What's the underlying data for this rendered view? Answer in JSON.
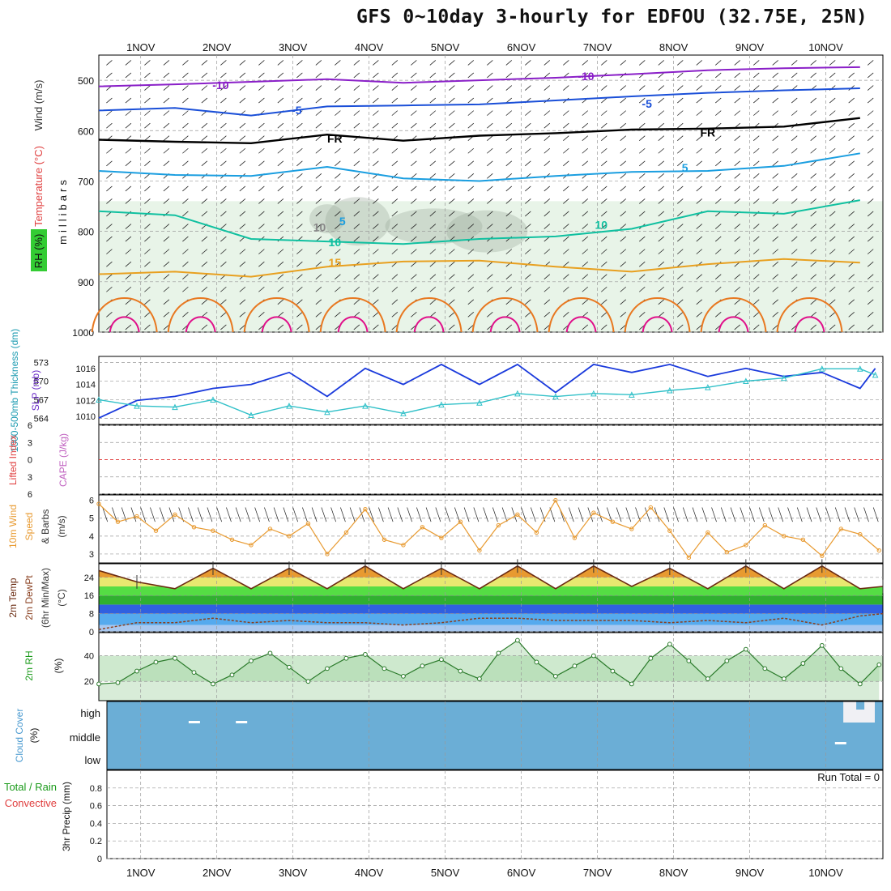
{
  "header": {
    "title": "GFS 0~10day 3-hourly for EDFOU (32.75E, 25N)"
  },
  "dates": [
    "1NOV",
    "2NOV",
    "3NOV",
    "4NOV",
    "5NOV",
    "6NOV",
    "7NOV",
    "8NOV",
    "9NOV",
    "10NOV"
  ],
  "colors": {
    "rh_fill": "#e8f4e8",
    "rh_dark": "#9aa89a",
    "wind_barb": "#222222",
    "t_minus10": "#8a1fc8",
    "t_minus5": "#1a4fd8",
    "t_freezing": "#000000",
    "t_plus5": "#1a9ee0",
    "t_plus10": "#10c0a0",
    "t_plus15": "#e8a020",
    "t_plus20": "#e87820",
    "t_plus25": "#e0108a",
    "slp_line": "#1a3adc",
    "thickness_line": "#30c0c8",
    "lifted_index_zero": "#e04040",
    "wind10m_line": "#e89a30",
    "rh2m": "#66cc66",
    "cloud": "#6baed6"
  },
  "chart_data": [
    {
      "type": "line",
      "panel": "upper-air",
      "y_axis_labels": [
        "Wind",
        "(m/s)",
        "Temperature",
        "(°C)",
        "RH",
        "(%)",
        "millibars"
      ],
      "y_ticks": [
        500,
        600,
        700,
        800,
        900,
        1000
      ],
      "ylim": [
        450,
        1000
      ],
      "contour_labels": [
        "-10",
        "-10",
        "-5",
        "-5",
        "FR",
        "FR",
        "5",
        "5",
        "10",
        "10",
        "10",
        "15"
      ],
      "series": [
        {
          "level_label": "-10",
          "x_days": [
            0,
            1,
            2,
            3,
            4,
            5,
            6,
            7,
            8,
            9,
            10
          ],
          "pressure": [
            512,
            508,
            503,
            498,
            505,
            500,
            495,
            488,
            480,
            476,
            474
          ]
        },
        {
          "level_label": "-5",
          "x_days": [
            0,
            1,
            2,
            3,
            4,
            5,
            6,
            7,
            8,
            9,
            10
          ],
          "pressure": [
            560,
            555,
            570,
            552,
            550,
            548,
            540,
            532,
            525,
            520,
            516
          ]
        },
        {
          "level_label": "FR",
          "x_days": [
            0,
            1,
            2,
            3,
            4,
            5,
            6,
            7,
            8,
            9,
            10
          ],
          "pressure": [
            618,
            622,
            625,
            608,
            620,
            610,
            605,
            598,
            596,
            592,
            575
          ]
        },
        {
          "level_label": "5",
          "x_days": [
            0,
            1,
            2,
            3,
            4,
            5,
            6,
            7,
            8,
            9,
            10
          ],
          "pressure": [
            680,
            688,
            690,
            672,
            695,
            700,
            690,
            682,
            680,
            670,
            645
          ]
        },
        {
          "level_label": "10",
          "x_days": [
            0,
            1,
            2,
            3,
            4,
            5,
            6,
            7,
            8,
            9,
            10
          ],
          "pressure": [
            760,
            768,
            815,
            820,
            825,
            815,
            810,
            795,
            760,
            765,
            738
          ]
        },
        {
          "level_label": "15",
          "x_days": [
            0,
            1,
            2,
            3,
            4,
            5,
            6,
            7,
            8,
            9,
            10
          ],
          "pressure": [
            885,
            880,
            890,
            870,
            860,
            858,
            870,
            880,
            865,
            855,
            862
          ]
        }
      ]
    },
    {
      "type": "line",
      "panel": "slp-thickness",
      "y_label_left": [
        "1000-500mb",
        "Thickness (dm)"
      ],
      "y_label_right": [
        "SLP (mb)"
      ],
      "left_ticks": [
        564,
        567,
        570,
        573
      ],
      "right_ticks": [
        1010,
        1012,
        1014,
        1016
      ],
      "series": [
        {
          "name": "SLP",
          "x_days": [
            0,
            0.5,
            1,
            1.5,
            2,
            2.5,
            3,
            3.5,
            4,
            4.5,
            5,
            5.5,
            6,
            6.5,
            7,
            7.5,
            8,
            8.5,
            9,
            9.5,
            10,
            10.2
          ],
          "values": [
            1009.8,
            1012,
            1012.5,
            1013.5,
            1014,
            1015.5,
            1012.5,
            1016,
            1014,
            1016.5,
            1014,
            1016.5,
            1013,
            1016.5,
            1015.5,
            1016.5,
            1015,
            1016,
            1015,
            1015.5,
            1013.5,
            1016
          ]
        },
        {
          "name": "Thickness",
          "x_days": [
            0,
            0.5,
            1,
            1.5,
            2,
            2.5,
            3,
            3.5,
            4,
            4.5,
            5,
            5.5,
            6,
            6.5,
            7,
            7.5,
            8,
            8.5,
            9,
            9.5,
            10,
            10.2
          ],
          "values": [
            567,
            566,
            565.8,
            567,
            564.5,
            566,
            565,
            566,
            564.8,
            566.2,
            566.5,
            568,
            567.5,
            568,
            567.8,
            568.5,
            569,
            570,
            570.5,
            572,
            572,
            571
          ]
        }
      ]
    },
    {
      "type": "line",
      "panel": "lifted-index-cape",
      "y_label_left": [
        "Lifted Index"
      ],
      "y_label_right": [
        "CAPE (J/kg)"
      ],
      "y_ticks": [
        -6,
        -3,
        0,
        3,
        6
      ],
      "values": []
    },
    {
      "type": "line",
      "panel": "wind-10m",
      "y_label": [
        "10m Wind",
        "Speed",
        "& Barbs",
        "(m/s)"
      ],
      "y_ticks": [
        3,
        4,
        5,
        6
      ],
      "ylim": [
        2.5,
        6.3
      ],
      "x_days": [
        0,
        0.25,
        0.5,
        0.75,
        1,
        1.25,
        1.5,
        1.75,
        2,
        2.25,
        2.5,
        2.75,
        3,
        3.25,
        3.5,
        3.75,
        4,
        4.25,
        4.5,
        4.75,
        5,
        5.25,
        5.5,
        5.75,
        6,
        6.25,
        6.5,
        6.75,
        7,
        7.25,
        7.5,
        7.75,
        8,
        8.25,
        8.5,
        8.75,
        9,
        9.25,
        9.5,
        9.75,
        10,
        10.25
      ],
      "values": [
        5.8,
        4.8,
        5.1,
        4.3,
        5.2,
        4.5,
        4.3,
        3.8,
        3.5,
        4.4,
        4.0,
        4.7,
        3.0,
        4.2,
        5.5,
        3.8,
        3.5,
        4.5,
        3.9,
        4.8,
        3.2,
        4.6,
        5.2,
        4.2,
        6.0,
        3.9,
        5.3,
        4.8,
        4.4,
        5.6,
        4.3,
        2.8,
        4.2,
        3.1,
        3.5,
        4.6,
        4.0,
        3.8,
        2.9,
        4.4,
        4.1,
        3.2
      ]
    },
    {
      "type": "area",
      "panel": "temp-2m",
      "y_label": [
        "2m Temp",
        "2m DewPt",
        "(6hr Min/Max)",
        "(°C)"
      ],
      "y_ticks": [
        0,
        8,
        16,
        24
      ],
      "ylim": [
        0,
        30
      ],
      "series": [
        {
          "name": "Temperature",
          "x_days": [
            0,
            0.5,
            1,
            1.5,
            2,
            2.5,
            3,
            3.5,
            4,
            4.5,
            5,
            5.5,
            6,
            6.5,
            7,
            7.5,
            8,
            8.5,
            9,
            9.5,
            10,
            10.3
          ],
          "values": [
            27,
            22,
            19,
            28,
            19,
            28,
            19,
            29,
            19,
            28,
            19,
            29,
            19,
            29,
            20,
            28,
            19,
            29,
            19,
            29,
            19,
            20
          ]
        },
        {
          "name": "Dew Point",
          "x_days": [
            0,
            0.5,
            1,
            1.5,
            2,
            2.5,
            3,
            3.5,
            4,
            4.5,
            5,
            5.5,
            6,
            6.5,
            7,
            7.5,
            8,
            8.5,
            9,
            9.5,
            10,
            10.3
          ],
          "values": [
            1,
            4,
            4,
            6,
            4,
            5,
            4,
            4,
            3,
            4,
            6,
            6,
            5,
            5,
            5,
            4,
            5,
            4,
            6,
            3,
            7,
            8
          ]
        }
      ]
    },
    {
      "type": "area",
      "panel": "rh-2m",
      "y_label": [
        "2m RH",
        "(%)"
      ],
      "y_ticks": [
        20,
        40
      ],
      "ylim": [
        5,
        58
      ],
      "x_days": [
        0,
        0.25,
        0.5,
        0.75,
        1,
        1.25,
        1.5,
        1.75,
        2,
        2.25,
        2.5,
        2.75,
        3,
        3.25,
        3.5,
        3.75,
        4,
        4.25,
        4.5,
        4.75,
        5,
        5.25,
        5.5,
        5.75,
        6,
        6.25,
        6.5,
        6.75,
        7,
        7.25,
        7.5,
        7.75,
        8,
        8.25,
        8.5,
        8.75,
        9,
        9.25,
        9.5,
        9.75,
        10,
        10.25
      ],
      "values": [
        18,
        19,
        28,
        35,
        38,
        27,
        18,
        25,
        36,
        42,
        31,
        20,
        30,
        38,
        41,
        30,
        24,
        32,
        37,
        28,
        22,
        42,
        52,
        35,
        24,
        32,
        40,
        28,
        18,
        38,
        49,
        36,
        22,
        36,
        45,
        30,
        22,
        34,
        48,
        30,
        18,
        33
      ]
    },
    {
      "type": "heatmap",
      "panel": "cloud-cover",
      "y_label": [
        "Cloud Cover",
        "(%)"
      ],
      "y_categories": [
        "high",
        "middle",
        "low"
      ]
    },
    {
      "type": "line",
      "panel": "precip-3hr",
      "y_label": [
        "Total / Rain",
        "Convective",
        "3hr Precip (mm)"
      ],
      "y_ticks": [
        0,
        0.2,
        0.4,
        0.6,
        0.8
      ],
      "ylim": [
        0,
        1.0
      ],
      "values": [],
      "annotation": "Run Total = 0"
    }
  ]
}
